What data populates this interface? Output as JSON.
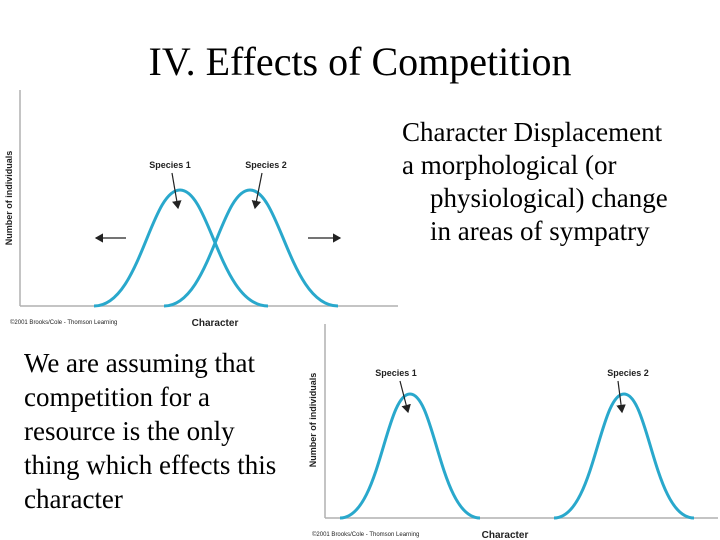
{
  "slide": {
    "title": "IV. Effects of Competition",
    "right_lines": [
      "Character Displacement",
      "a morphological (or",
      "physiological) change",
      "in areas of sympatry"
    ],
    "left_lines": [
      "We are assuming that",
      "competition for a",
      "resource is the only",
      "thing which  effects this",
      "character"
    ]
  },
  "figure_top": {
    "ylabel": "Number of individuals",
    "xlabel": "Character",
    "credit": "©2001 Brooks/Cole - Thomson Learning",
    "species_1": "Species 1",
    "species_2": "Species 2"
  },
  "figure_bottom": {
    "ylabel": "Number of individuals",
    "xlabel": "Character",
    "credit": "©2001 Brooks/Cole - Thomson Learning",
    "species_1": "Species 1",
    "species_2": "Species 2"
  },
  "colors": {
    "curve": "#29a8cc",
    "axis": "#222222",
    "axis_line": "#b0b0b0"
  }
}
